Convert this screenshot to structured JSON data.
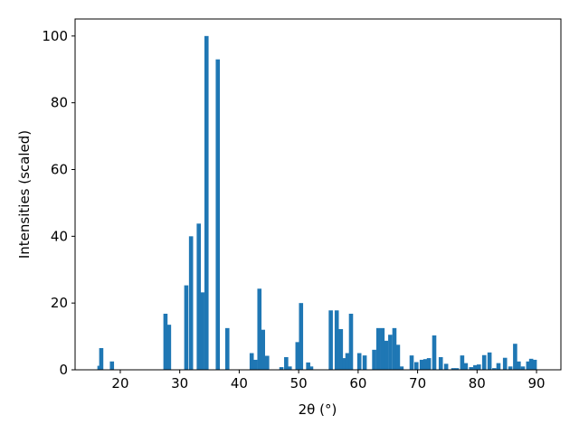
{
  "chart_data": {
    "type": "bar",
    "xlabel": "2θ (°)",
    "ylabel": "Intensities (scaled)",
    "color": "#1f77b4",
    "x": [
      16.5,
      16.8,
      18.6,
      27.6,
      28.2,
      31.1,
      31.9,
      33.2,
      33.8,
      34.5,
      36.4,
      38.0,
      42.1,
      42.7,
      43.4,
      44.0,
      44.7,
      47.1,
      47.9,
      48.5,
      49.8,
      50.4,
      51.6,
      52.1,
      55.4,
      56.4,
      57.1,
      57.7,
      58.2,
      58.8,
      60.2,
      61.1,
      62.7,
      63.4,
      64.1,
      64.7,
      65.4,
      66.1,
      66.7,
      67.3,
      69.0,
      69.8,
      70.7,
      71.3,
      71.9,
      72.8,
      73.9,
      74.8,
      76.0,
      76.6,
      77.5,
      78.1,
      79.0,
      79.7,
      80.3,
      81.2,
      82.1,
      82.9,
      83.6,
      84.7,
      85.6,
      86.4,
      87.0,
      87.7,
      88.6,
      89.1,
      89.7
    ],
    "values": [
      1.2,
      6.5,
      2.5,
      16.8,
      13.5,
      25.3,
      40,
      43.8,
      23.2,
      100,
      93,
      12.5,
      5,
      3,
      24.3,
      12,
      4.2,
      0.8,
      3.8,
      1,
      8.3,
      20,
      2.2,
      1,
      17.8,
      17.8,
      12.2,
      3.5,
      5,
      16.8,
      5,
      4.3,
      6,
      12.5,
      12.5,
      8.7,
      10.5,
      12.5,
      7.5,
      1,
      4.3,
      2.3,
      3,
      3.2,
      3.5,
      10.3,
      3.8,
      1.8,
      0.5,
      0.5,
      4.3,
      2,
      0.8,
      1.4,
      1.6,
      4.4,
      5.2,
      0.5,
      2,
      3.6,
      1,
      7.8,
      2.5,
      1,
      2.5,
      3.3,
      3
    ],
    "xlim": [
      12.4,
      94.1
    ],
    "xticks": [
      20,
      30,
      40,
      50,
      60,
      70,
      80,
      90
    ],
    "ylim": [
      0,
      105.1
    ],
    "yticks": [
      0,
      20,
      40,
      60,
      80,
      100
    ]
  }
}
